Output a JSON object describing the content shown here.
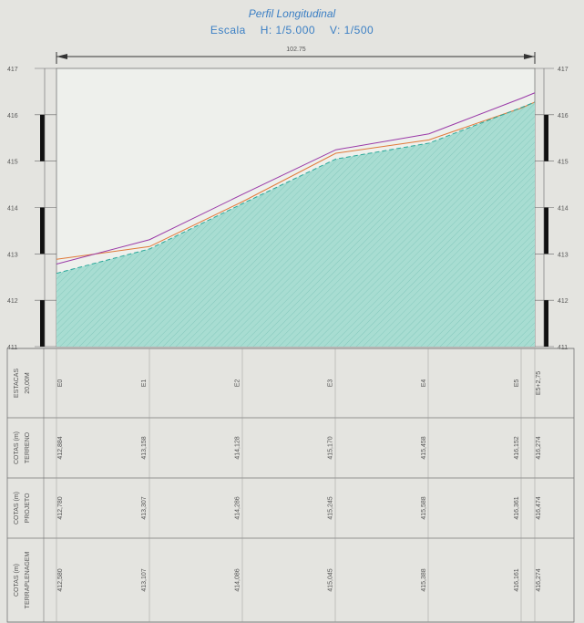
{
  "header": {
    "title": "Perfil Longitudinal",
    "scale_prefix": "Escala",
    "scale_h": "H: 1/5.000",
    "scale_v": "V: 1/500",
    "dimension": "102.75"
  },
  "y_ticks": [
    "417",
    "416",
    "415",
    "414",
    "413",
    "412",
    "411"
  ],
  "right_labels": [
    "417",
    "416",
    "415",
    "414",
    "413",
    "412",
    "411"
  ],
  "rows": [
    {
      "header": [
        "ESTACAS",
        "20,00M"
      ],
      "values": [
        "E0",
        "E1",
        "E2",
        "E3",
        "E4",
        "E5"
      ],
      "last": "E5+2,75"
    },
    {
      "header": [
        "COTAS (m)",
        "TERRENO"
      ],
      "values": [
        "412,884",
        "413,158",
        "414,128",
        "415,170",
        "415,458",
        "416,152"
      ],
      "last": "416,274"
    },
    {
      "header": [
        "COTAS (m)",
        "PROJETO"
      ],
      "values": [
        "412,780",
        "413,307",
        "414,286",
        "415,245",
        "415,588",
        "416,361"
      ],
      "last": "416,474"
    },
    {
      "header": [
        "COTAS (m)",
        "TERRAPLENAGEM"
      ],
      "values": [
        "412,580",
        "413,107",
        "414,086",
        "415,045",
        "415,388",
        "416,161"
      ],
      "last": "416,274"
    }
  ],
  "chart_data": {
    "type": "line",
    "title": "Perfil Longitudinal",
    "x_stations": [
      "E0",
      "E1",
      "E2",
      "E3",
      "E4",
      "E5",
      "E5+2,75"
    ],
    "x": [
      0,
      20,
      40,
      60,
      80,
      100,
      102.75
    ],
    "ylim": [
      411,
      417
    ],
    "series": [
      {
        "name": "TERRENO",
        "values": [
          412.884,
          413.158,
          414.128,
          415.17,
          415.458,
          416.152,
          416.274
        ],
        "color": "#e07a3a"
      },
      {
        "name": "PROJETO",
        "values": [
          412.78,
          413.307,
          414.286,
          415.245,
          415.588,
          416.361,
          416.474
        ],
        "color": "#9a3aa8"
      },
      {
        "name": "TERRAPLENAGEM",
        "values": [
          412.58,
          413.107,
          414.086,
          415.045,
          415.388,
          416.161,
          416.274
        ],
        "color": "#2aa89a"
      }
    ],
    "colors": {
      "fill": "#a8ddd2",
      "hatch": "#7fc4b8",
      "grid": "#555555"
    }
  }
}
